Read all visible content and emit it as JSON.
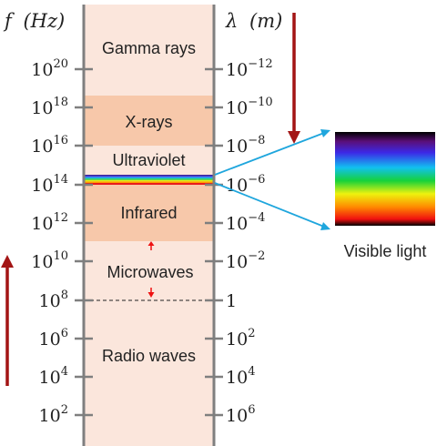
{
  "axes": {
    "frequency": {
      "symbol": "f",
      "unit": "(Hz)"
    },
    "wavelength": {
      "symbol": "λ",
      "unit": "(m)"
    }
  },
  "frequency_ticks": [
    {
      "base": "10",
      "exp": "20"
    },
    {
      "base": "10",
      "exp": "18"
    },
    {
      "base": "10",
      "exp": "16"
    },
    {
      "base": "10",
      "exp": "14"
    },
    {
      "base": "10",
      "exp": "12"
    },
    {
      "base": "10",
      "exp": "10"
    },
    {
      "base": "10",
      "exp": "8"
    },
    {
      "base": "10",
      "exp": "6"
    },
    {
      "base": "10",
      "exp": "4"
    },
    {
      "base": "10",
      "exp": "2"
    }
  ],
  "wavelength_ticks": [
    {
      "base": "10",
      "exp": "−12"
    },
    {
      "base": "10",
      "exp": "−10"
    },
    {
      "base": "10",
      "exp": "−8"
    },
    {
      "base": "10",
      "exp": "−6"
    },
    {
      "base": "10",
      "exp": "−4"
    },
    {
      "base": "10",
      "exp": "−2"
    },
    {
      "base": "1",
      "exp": ""
    },
    {
      "base": "10",
      "exp": "2"
    },
    {
      "base": "10",
      "exp": "4"
    },
    {
      "base": "10",
      "exp": "6"
    }
  ],
  "bands": [
    {
      "name": "Gamma rays",
      "color": "#fbe6dc"
    },
    {
      "name": "X-rays",
      "color": "#f7c8aa"
    },
    {
      "name": "Ultraviolet",
      "color": "#fbe6dc"
    },
    {
      "name": "Infrared",
      "color": "#f7c8aa"
    },
    {
      "name": "Microwaves",
      "color": "#fbe6dc"
    },
    {
      "name": "Radio waves",
      "color": "#fbe6dc"
    }
  ],
  "visible_light_label": "Visible light",
  "colors": {
    "axis": "#7f7f7f",
    "arrow_dark_red": "#a31515",
    "arrow_red": "#ee1111",
    "pointer_blue": "#1fa6dd"
  }
}
